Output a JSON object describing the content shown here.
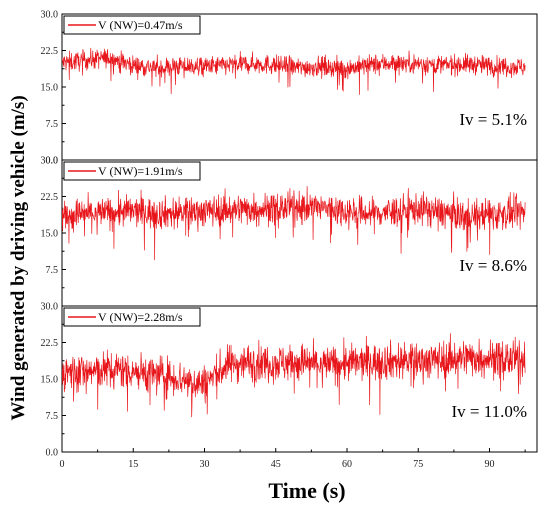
{
  "chart_data": {
    "type": "line",
    "xlabel": "Time (s)",
    "ylabel": "Wind generated by driving vehicle (m/s)",
    "xlim": [
      0,
      100
    ],
    "x_ticks": [
      "0",
      "15",
      "30",
      "45",
      "60",
      "75",
      "90"
    ],
    "x_tick_values": [
      0,
      15,
      30,
      45,
      60,
      75,
      90
    ],
    "series_color": "#e8161b",
    "panels": [
      {
        "legend": "V (NW)=0.47m/s",
        "annotation": "Iv = 5.1%",
        "ylim": [
          0,
          30
        ],
        "y_ticks": [
          "0.0",
          "7.5",
          "15.0",
          "22.5",
          "30.0"
        ],
        "y_tick_values": [
          0,
          7.5,
          15,
          22.5,
          30
        ],
        "mean": 19.5,
        "std": 1.0,
        "x": [
          0,
          5,
          10,
          15,
          20,
          25,
          30,
          35,
          40,
          45,
          50,
          55,
          60,
          65,
          70,
          75,
          80,
          85,
          90,
          95,
          100
        ],
        "y": [
          20.0,
          20.5,
          21.0,
          19.5,
          19.0,
          19.3,
          19.2,
          19.5,
          19.8,
          19.5,
          19.0,
          19.2,
          18.8,
          19.6,
          20.0,
          19.8,
          19.5,
          19.7,
          19.4,
          19.2,
          19.0
        ]
      },
      {
        "legend": "V (NW)=1.91m/s",
        "annotation": "Iv = 8.6%",
        "ylim": [
          0,
          30
        ],
        "y_ticks": [
          "7.5",
          "15.0",
          "22.5",
          "30.0"
        ],
        "y_tick_values": [
          7.5,
          15,
          22.5,
          30
        ],
        "mean": 19.0,
        "std": 1.6,
        "x": [
          0,
          5,
          10,
          15,
          20,
          25,
          30,
          35,
          40,
          45,
          50,
          55,
          60,
          65,
          70,
          75,
          80,
          85,
          90,
          95,
          100
        ],
        "y": [
          18.5,
          19.0,
          19.2,
          19.5,
          19.0,
          19.3,
          19.5,
          19.8,
          20.0,
          20.0,
          20.5,
          20.2,
          19.5,
          19.0,
          19.5,
          20.0,
          19.3,
          18.5,
          18.8,
          19.0,
          19.2
        ]
      },
      {
        "legend": "V (NW)=2.28m/s",
        "annotation": "Iv = 11.0%",
        "ylim": [
          0,
          30
        ],
        "y_ticks": [
          "0.0",
          "7.5",
          "15.0",
          "22.5",
          "30.0"
        ],
        "y_tick_values": [
          0,
          7.5,
          15,
          22.5,
          30
        ],
        "mean": 17.5,
        "std": 1.9,
        "x": [
          0,
          5,
          10,
          15,
          20,
          25,
          30,
          35,
          40,
          45,
          50,
          55,
          60,
          65,
          70,
          75,
          80,
          85,
          90,
          95,
          100
        ],
        "y": [
          16.5,
          16.5,
          17.0,
          16.8,
          16.0,
          15.0,
          14.0,
          18.0,
          18.5,
          18.3,
          18.5,
          18.0,
          18.2,
          18.5,
          18.8,
          18.8,
          19.0,
          19.5,
          19.3,
          19.0,
          18.8
        ]
      }
    ]
  }
}
